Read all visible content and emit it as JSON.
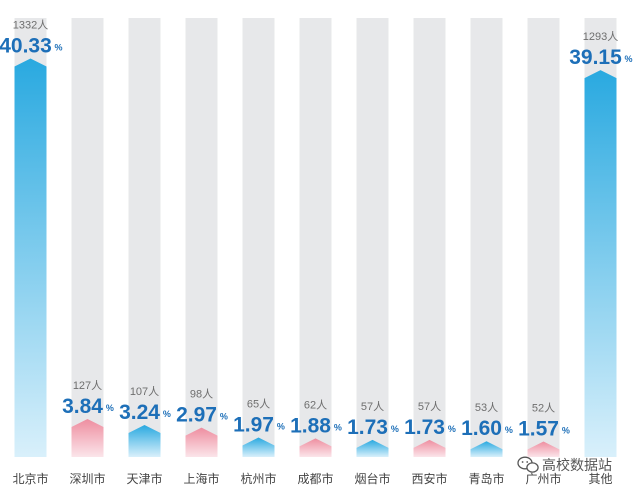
{
  "chart_data": {
    "type": "bar",
    "categories": [
      "北京市",
      "深圳市",
      "天津市",
      "上海市",
      "杭州市",
      "成都市",
      "烟台市",
      "西安市",
      "青岛市",
      "广州市",
      "其他"
    ],
    "series": [
      {
        "values": [
          40.33,
          3.84,
          3.24,
          2.97,
          1.97,
          1.88,
          1.73,
          1.73,
          1.6,
          1.57,
          39.15
        ]
      }
    ],
    "counts": [
      "1332人",
      "127人",
      "107人",
      "98人",
      "65人",
      "62人",
      "57人",
      "57人",
      "53人",
      "52人",
      "1293人"
    ],
    "percent_labels": [
      "40.33",
      "3.84",
      "3.24",
      "2.97",
      "1.97",
      "1.88",
      "1.73",
      "1.73",
      "1.60",
      "1.57",
      "39.15"
    ],
    "percent_symbol": "%",
    "ylim": [
      0,
      42
    ],
    "grid": false,
    "colors": {
      "blue": "#29a9e0",
      "blue_light": "#d9f0fb",
      "pink": "#ee8ea0",
      "pink_light": "#fbe5ea",
      "track": "#e7e8ea",
      "label": "#1d6fb8"
    },
    "bar_color_pattern": [
      "blue",
      "pink",
      "blue",
      "pink",
      "blue",
      "pink",
      "blue",
      "pink",
      "blue",
      "pink",
      "blue"
    ]
  },
  "watermark": {
    "icon": "wechat-icon",
    "text": "高校数据站"
  }
}
